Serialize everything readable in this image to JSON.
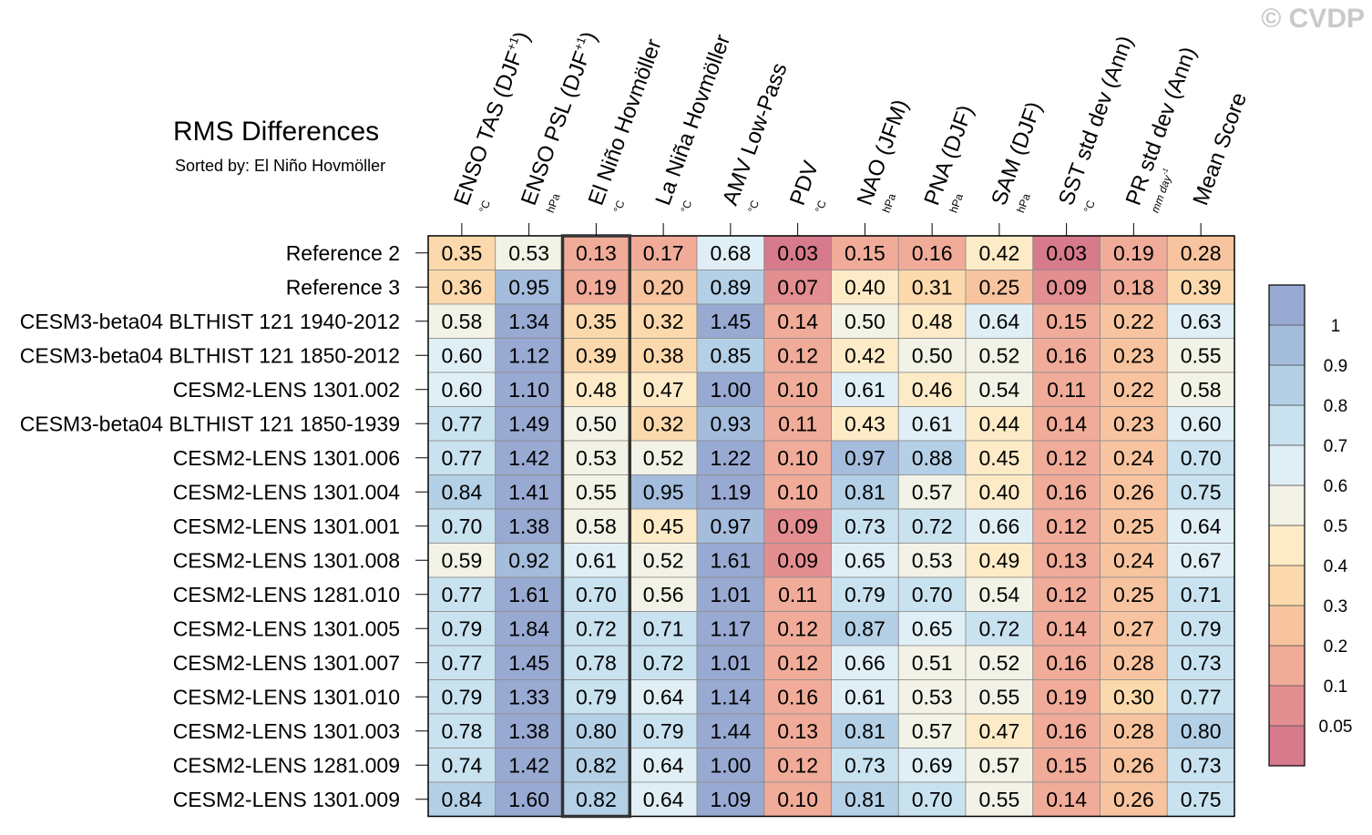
{
  "copyright": "© CVDP",
  "chart_data": {
    "type": "heatmap",
    "title": "RMS Differences",
    "subtitle": "Sorted by: El Niño Hovmöller",
    "highlighted_column": "El Niño Hovmöller",
    "columns": [
      {
        "name": "ENSO TAS (DJF",
        "sup": "+1",
        "close": ")",
        "unit": "°C"
      },
      {
        "name": "ENSO PSL (DJF",
        "sup": "+1",
        "close": ")",
        "unit": "hPa"
      },
      {
        "name": "El Niño Hovmöller",
        "sup": "",
        "close": "",
        "unit": "°C"
      },
      {
        "name": "La Niña Hovmöller",
        "sup": "",
        "close": "",
        "unit": "°C"
      },
      {
        "name": "AMV Low-Pass",
        "sup": "",
        "close": "",
        "unit": "°C"
      },
      {
        "name": "PDV",
        "sup": "",
        "close": "",
        "unit": "°C"
      },
      {
        "name": "NAO (JFM)",
        "sup": "",
        "close": "",
        "unit": "hPa"
      },
      {
        "name": "PNA (DJF)",
        "sup": "",
        "close": "",
        "unit": "hPa"
      },
      {
        "name": "SAM (DJF)",
        "sup": "",
        "close": "",
        "unit": "hPa"
      },
      {
        "name": "SST std dev (Ann)",
        "sup": "",
        "close": "",
        "unit": "°C"
      },
      {
        "name": "PR std dev (Ann)",
        "sup": "",
        "close": "",
        "unit": "mm day",
        "unit_sup": "-1"
      },
      {
        "name": "Mean Score",
        "sup": "",
        "close": "",
        "unit": ""
      }
    ],
    "rows": [
      "Reference 2",
      "Reference 3",
      "CESM3-beta04 BLTHIST 121 1940-2012",
      "CESM3-beta04 BLTHIST 121 1850-2012",
      "CESM2-LENS 1301.002",
      "CESM3-beta04 BLTHIST 121 1850-1939",
      "CESM2-LENS 1301.006",
      "CESM2-LENS 1301.004",
      "CESM2-LENS 1301.001",
      "CESM2-LENS 1301.008",
      "CESM2-LENS 1281.010",
      "CESM2-LENS 1301.005",
      "CESM2-LENS 1301.007",
      "CESM2-LENS 1301.010",
      "CESM2-LENS 1301.003",
      "CESM2-LENS 1281.009",
      "CESM2-LENS 1301.009"
    ],
    "values": [
      [
        "0.35",
        "0.53",
        "0.13",
        "0.17",
        "0.68",
        "0.03",
        "0.15",
        "0.16",
        "0.42",
        "0.03",
        "0.19",
        "0.28"
      ],
      [
        "0.36",
        "0.95",
        "0.19",
        "0.20",
        "0.89",
        "0.07",
        "0.40",
        "0.31",
        "0.25",
        "0.09",
        "0.18",
        "0.39"
      ],
      [
        "0.58",
        "1.34",
        "0.35",
        "0.32",
        "1.45",
        "0.14",
        "0.50",
        "0.48",
        "0.64",
        "0.15",
        "0.22",
        "0.63"
      ],
      [
        "0.60",
        "1.12",
        "0.39",
        "0.38",
        "0.85",
        "0.12",
        "0.42",
        "0.50",
        "0.52",
        "0.16",
        "0.23",
        "0.55"
      ],
      [
        "0.60",
        "1.10",
        "0.48",
        "0.47",
        "1.00",
        "0.10",
        "0.61",
        "0.46",
        "0.54",
        "0.11",
        "0.22",
        "0.58"
      ],
      [
        "0.77",
        "1.49",
        "0.50",
        "0.32",
        "0.93",
        "0.11",
        "0.43",
        "0.61",
        "0.44",
        "0.14",
        "0.23",
        "0.60"
      ],
      [
        "0.77",
        "1.42",
        "0.53",
        "0.52",
        "1.22",
        "0.10",
        "0.97",
        "0.88",
        "0.45",
        "0.12",
        "0.24",
        "0.70"
      ],
      [
        "0.84",
        "1.41",
        "0.55",
        "0.95",
        "1.19",
        "0.10",
        "0.81",
        "0.57",
        "0.40",
        "0.16",
        "0.26",
        "0.75"
      ],
      [
        "0.70",
        "1.38",
        "0.58",
        "0.45",
        "0.97",
        "0.09",
        "0.73",
        "0.72",
        "0.66",
        "0.12",
        "0.25",
        "0.64"
      ],
      [
        "0.59",
        "0.92",
        "0.61",
        "0.52",
        "1.61",
        "0.09",
        "0.65",
        "0.53",
        "0.49",
        "0.13",
        "0.24",
        "0.67"
      ],
      [
        "0.77",
        "1.61",
        "0.70",
        "0.56",
        "1.01",
        "0.11",
        "0.79",
        "0.70",
        "0.54",
        "0.12",
        "0.25",
        "0.71"
      ],
      [
        "0.79",
        "1.84",
        "0.72",
        "0.71",
        "1.17",
        "0.12",
        "0.87",
        "0.65",
        "0.72",
        "0.14",
        "0.27",
        "0.79"
      ],
      [
        "0.77",
        "1.45",
        "0.78",
        "0.72",
        "1.01",
        "0.12",
        "0.66",
        "0.51",
        "0.52",
        "0.16",
        "0.28",
        "0.73"
      ],
      [
        "0.79",
        "1.33",
        "0.79",
        "0.64",
        "1.14",
        "0.16",
        "0.61",
        "0.53",
        "0.55",
        "0.19",
        "0.30",
        "0.77"
      ],
      [
        "0.78",
        "1.38",
        "0.80",
        "0.79",
        "1.44",
        "0.13",
        "0.81",
        "0.57",
        "0.47",
        "0.16",
        "0.28",
        "0.80"
      ],
      [
        "0.74",
        "1.42",
        "0.82",
        "0.64",
        "1.00",
        "0.12",
        "0.73",
        "0.69",
        "0.57",
        "0.15",
        "0.26",
        "0.73"
      ],
      [
        "0.84",
        "1.60",
        "0.82",
        "0.64",
        "1.09",
        "0.10",
        "0.81",
        "0.70",
        "0.55",
        "0.14",
        "0.26",
        "0.75"
      ]
    ],
    "colorbar": {
      "levels": [
        0.05,
        0.1,
        0.2,
        0.3,
        0.4,
        0.5,
        0.6,
        0.7,
        0.8,
        0.9,
        1
      ],
      "labels": [
        "0.05",
        "0.1",
        "0.2",
        "0.3",
        "0.4",
        "0.5",
        "0.6",
        "0.7",
        "0.8",
        "0.9",
        "1"
      ],
      "colors": [
        "#d67a8c",
        "#e38e90",
        "#f0ab99",
        "#f7c49f",
        "#fbd9ac",
        "#fcebc6",
        "#f2f2e6",
        "#e0eff5",
        "#c9e2ef",
        "#b4d0e6",
        "#a5bddc",
        "#98a9d2"
      ]
    }
  }
}
